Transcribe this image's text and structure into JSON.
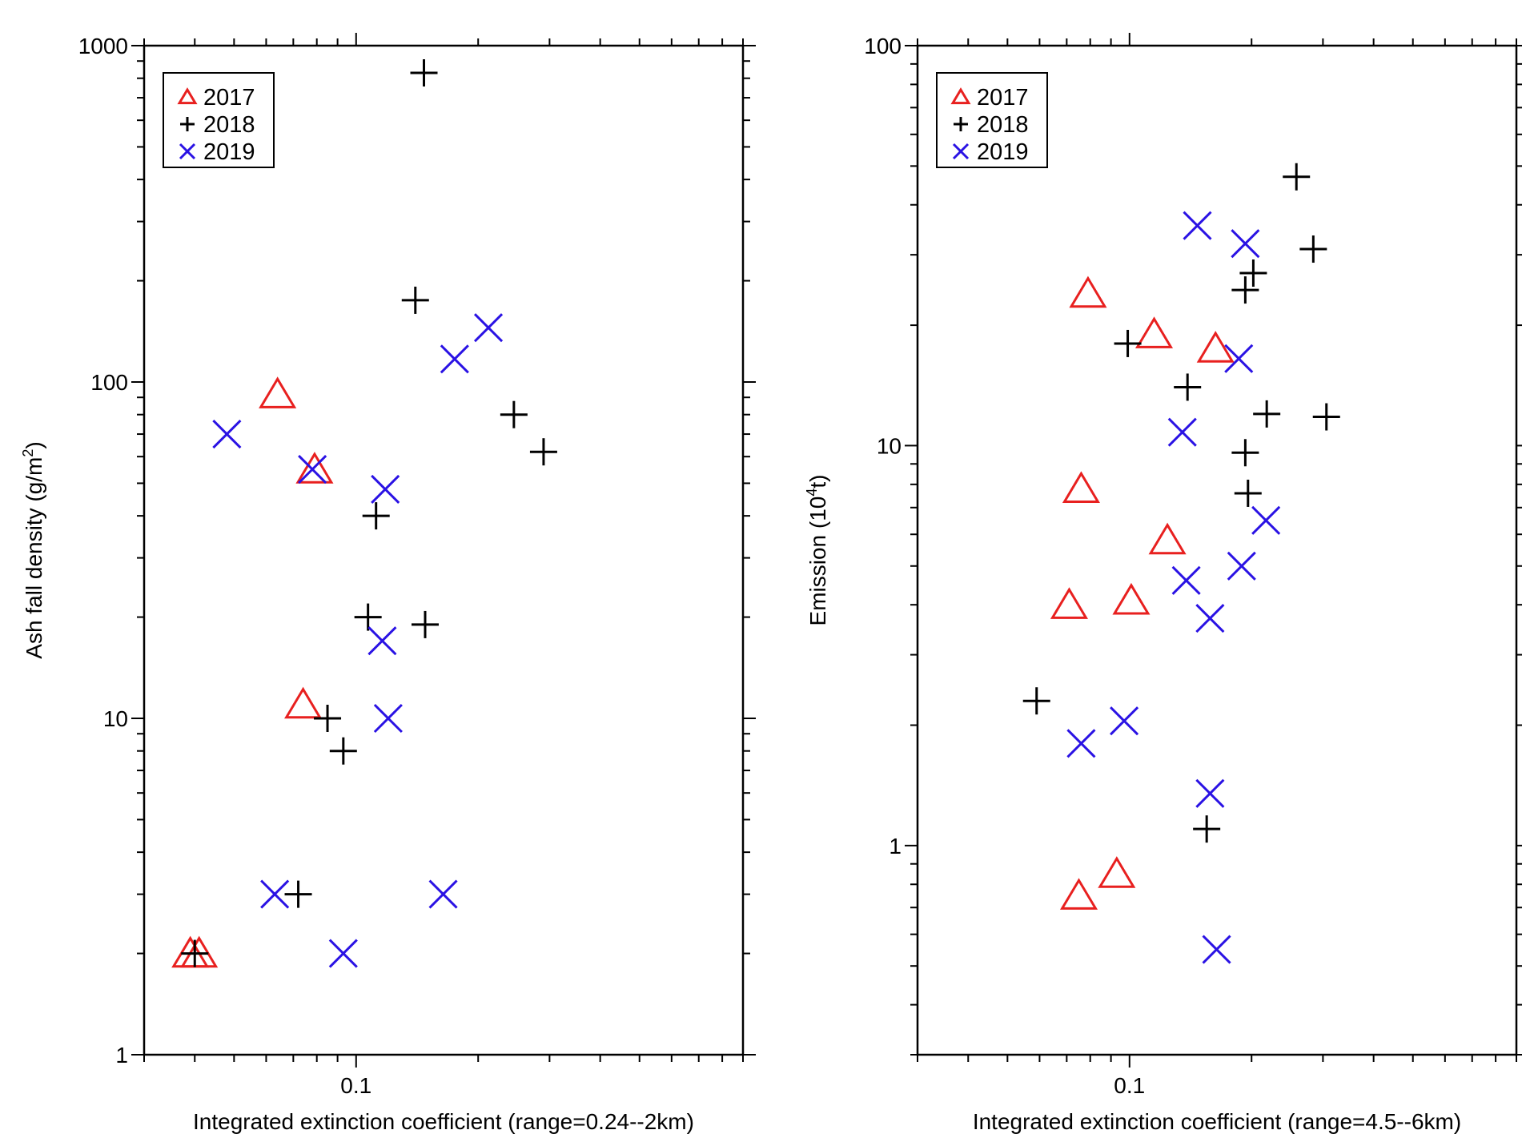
{
  "chart_data": [
    {
      "type": "scatter",
      "title": "",
      "xlabel": "Integrated extinction coefficient (range=0.24--2km)",
      "ylabel_main": "Ash fall density (g/m",
      "ylabel_sup": "2",
      "ylabel_tail": ")",
      "xscale": "log",
      "yscale": "log",
      "xlim": [
        0.03,
        0.9
      ],
      "ylim": [
        1,
        1000
      ],
      "x_tick_labels": [
        {
          "value": 0.1,
          "label": "0.1"
        }
      ],
      "y_tick_labels": [
        {
          "value": 1,
          "label": "1"
        },
        {
          "value": 10,
          "label": "10"
        },
        {
          "value": 100,
          "label": "100"
        },
        {
          "value": 1000,
          "label": "1000"
        }
      ],
      "legend_position": "top-left",
      "series": [
        {
          "name": "2017",
          "marker": "triangle",
          "color": "#e8201f",
          "points": [
            [
              0.039,
              2.0
            ],
            [
              0.041,
              2.0
            ],
            [
              0.064,
              92
            ],
            [
              0.074,
              11
            ],
            [
              0.079,
              55
            ]
          ]
        },
        {
          "name": "2018",
          "marker": "plus",
          "color": "#000000",
          "points": [
            [
              0.04,
              2.0
            ],
            [
              0.072,
              3.0
            ],
            [
              0.085,
              10
            ],
            [
              0.093,
              8
            ],
            [
              0.107,
              20
            ],
            [
              0.112,
              40
            ],
            [
              0.14,
              175
            ],
            [
              0.147,
              830
            ],
            [
              0.148,
              19
            ],
            [
              0.245,
              80
            ],
            [
              0.29,
              62
            ]
          ]
        },
        {
          "name": "2019",
          "marker": "x",
          "color": "#2a12e4",
          "points": [
            [
              0.048,
              70
            ],
            [
              0.063,
              3.0
            ],
            [
              0.078,
              55
            ],
            [
              0.093,
              2.0
            ],
            [
              0.116,
              17
            ],
            [
              0.118,
              48
            ],
            [
              0.12,
              10
            ],
            [
              0.164,
              3.0
            ],
            [
              0.175,
              117
            ],
            [
              0.212,
              145
            ]
          ]
        }
      ]
    },
    {
      "type": "scatter",
      "title": "",
      "xlabel": "Integrated extinction coefficient (range=4.5--6km)",
      "ylabel_main": "Emission (10",
      "ylabel_sup": "4",
      "ylabel_tail": "t)",
      "xscale": "log",
      "yscale": "log",
      "xlim": [
        0.03,
        0.9
      ],
      "ylim": [
        0.3,
        100
      ],
      "x_tick_labels": [
        {
          "value": 0.1,
          "label": "0.1"
        }
      ],
      "y_tick_labels": [
        {
          "value": 1,
          "label": "1"
        },
        {
          "value": 10,
          "label": "10"
        },
        {
          "value": 100,
          "label": "100"
        }
      ],
      "legend_position": "top-left",
      "series": [
        {
          "name": "2017",
          "marker": "triangle",
          "color": "#e8201f",
          "points": [
            [
              0.071,
              4.0
            ],
            [
              0.075,
              0.75
            ],
            [
              0.076,
              7.8
            ],
            [
              0.079,
              24
            ],
            [
              0.093,
              0.85
            ],
            [
              0.101,
              4.1
            ],
            [
              0.115,
              19
            ],
            [
              0.124,
              5.8
            ],
            [
              0.163,
              17.5
            ]
          ]
        },
        {
          "name": "2018",
          "marker": "plus",
          "color": "#000000",
          "points": [
            [
              0.059,
              2.3
            ],
            [
              0.099,
              18
            ],
            [
              0.139,
              14
            ],
            [
              0.155,
              1.1
            ],
            [
              0.193,
              9.6
            ],
            [
              0.193,
              24.5
            ],
            [
              0.196,
              7.6
            ],
            [
              0.202,
              27
            ],
            [
              0.218,
              12
            ],
            [
              0.258,
              47
            ],
            [
              0.284,
              31
            ],
            [
              0.306,
              11.8
            ]
          ]
        },
        {
          "name": "2019",
          "marker": "x",
          "color": "#2a12e4",
          "points": [
            [
              0.076,
              1.8
            ],
            [
              0.097,
              2.05
            ],
            [
              0.135,
              10.8
            ],
            [
              0.138,
              4.6
            ],
            [
              0.147,
              35.5
            ],
            [
              0.158,
              1.35
            ],
            [
              0.158,
              3.7
            ],
            [
              0.164,
              0.55
            ],
            [
              0.186,
              16.5
            ],
            [
              0.189,
              5.0
            ],
            [
              0.193,
              32
            ],
            [
              0.217,
              6.5
            ]
          ]
        }
      ]
    }
  ]
}
